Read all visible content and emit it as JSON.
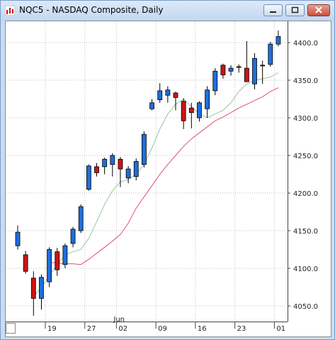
{
  "window": {
    "title": "NQC5 - NASDAQ Composite, Daily"
  },
  "colors": {
    "up": "#1e6fd9",
    "down": "#cc1414",
    "ma_short": "#9cc49c",
    "ma_long": "#e0507a",
    "grid": "#bfbfbf"
  },
  "chart_data": {
    "type": "candlestick",
    "title": "NQC5 - NASDAQ Composite, Daily",
    "ylim": [
      4040,
      4420
    ],
    "y_ticks": [
      4050,
      4100,
      4150,
      4200,
      4250,
      4300,
      4350,
      4400
    ],
    "y_tick_labels": [
      "4050.0",
      "4100.0",
      "4150.0",
      "4200.0",
      "4250.0",
      "4300.0",
      "4350.0",
      "4400.0"
    ],
    "x_labels": [
      "19",
      "27",
      "02",
      "09",
      "16",
      "23",
      "01"
    ],
    "x_label_bar_index": [
      4,
      9,
      13,
      18,
      23,
      28,
      33
    ],
    "month_label": "Jun",
    "month_label_bar_index": 13,
    "grid": true,
    "candles": [
      {
        "o": 4130,
        "h": 4157,
        "l": 4125,
        "c": 4148
      },
      {
        "o": 4118,
        "h": 4123,
        "l": 4093,
        "c": 4096
      },
      {
        "o": 4087,
        "h": 4096,
        "l": 4037,
        "c": 4060
      },
      {
        "o": 4060,
        "h": 4092,
        "l": 4045,
        "c": 4088
      },
      {
        "o": 4082,
        "h": 4128,
        "l": 4075,
        "c": 4125
      },
      {
        "o": 4122,
        "h": 4127,
        "l": 4090,
        "c": 4098
      },
      {
        "o": 4105,
        "h": 4133,
        "l": 4100,
        "c": 4130
      },
      {
        "o": 4133,
        "h": 4155,
        "l": 4128,
        "c": 4152
      },
      {
        "o": 4150,
        "h": 4185,
        "l": 4147,
        "c": 4182
      },
      {
        "o": 4205,
        "h": 4238,
        "l": 4203,
        "c": 4236
      },
      {
        "o": 4235,
        "h": 4240,
        "l": 4222,
        "c": 4227
      },
      {
        "o": 4235,
        "h": 4247,
        "l": 4225,
        "c": 4245
      },
      {
        "o": 4238,
        "h": 4253,
        "l": 4222,
        "c": 4250
      },
      {
        "o": 4245,
        "h": 4248,
        "l": 4208,
        "c": 4232
      },
      {
        "o": 4220,
        "h": 4236,
        "l": 4213,
        "c": 4232
      },
      {
        "o": 4222,
        "h": 4246,
        "l": 4217,
        "c": 4242
      },
      {
        "o": 4238,
        "h": 4282,
        "l": 4234,
        "c": 4278
      },
      {
        "o": 4312,
        "h": 4325,
        "l": 4310,
        "c": 4320
      },
      {
        "o": 4324,
        "h": 4346,
        "l": 4320,
        "c": 4336
      },
      {
        "o": 4330,
        "h": 4342,
        "l": 4320,
        "c": 4337
      },
      {
        "o": 4333,
        "h": 4335,
        "l": 4310,
        "c": 4327
      },
      {
        "o": 4322,
        "h": 4326,
        "l": 4285,
        "c": 4296
      },
      {
        "o": 4313,
        "h": 4320,
        "l": 4286,
        "c": 4307
      },
      {
        "o": 4300,
        "h": 4322,
        "l": 4295,
        "c": 4320
      },
      {
        "o": 4312,
        "h": 4342,
        "l": 4300,
        "c": 4337
      },
      {
        "o": 4336,
        "h": 4366,
        "l": 4330,
        "c": 4362
      },
      {
        "o": 4370,
        "h": 4372,
        "l": 4352,
        "c": 4357
      },
      {
        "o": 4362,
        "h": 4370,
        "l": 4356,
        "c": 4366
      },
      {
        "o": 4368,
        "h": 4371,
        "l": 4360,
        "c": 4367
      },
      {
        "o": 4366,
        "h": 4402,
        "l": 4348,
        "c": 4348
      },
      {
        "o": 4345,
        "h": 4386,
        "l": 4338,
        "c": 4379
      },
      {
        "o": 4369,
        "h": 4376,
        "l": 4345,
        "c": 4370
      },
      {
        "o": 4371,
        "h": 4401,
        "l": 4368,
        "c": 4398
      },
      {
        "o": 4398,
        "h": 4416,
        "l": 4395,
        "c": 4408
      }
    ],
    "ma_short": [
      null,
      null,
      4062,
      4075,
      4090,
      4105,
      4118,
      4122,
      4125,
      4140,
      4162,
      4185,
      4203,
      4215,
      4218,
      4225,
      4238,
      4260,
      4285,
      4305,
      4318,
      4325,
      4315,
      4305,
      4300,
      4305,
      4310,
      4320,
      4335,
      4345,
      4350,
      4352,
      4354,
      4360
    ],
    "ma_long": [
      null,
      null,
      null,
      null,
      4108,
      4107,
      4106,
      4106,
      4105,
      4112,
      4120,
      4128,
      4136,
      4145,
      4160,
      4180,
      4195,
      4210,
      4225,
      4238,
      4250,
      4262,
      4272,
      4280,
      4288,
      4296,
      4301,
      4307,
      4313,
      4318,
      4323,
      4328,
      4335,
      4340
    ]
  }
}
